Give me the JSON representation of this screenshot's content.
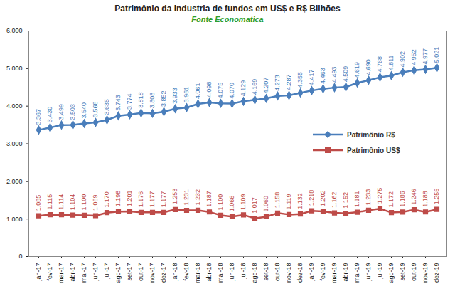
{
  "chart_data": {
    "type": "line",
    "title": "Patrimônio da Industria de fundos em US$ e R$ Bilhões",
    "subtitle": "Fonte Economatica",
    "categories": [
      "jan-17",
      "fev-17",
      "mar-17",
      "abr-17",
      "mai-17",
      "jun-17",
      "jul-17",
      "ago-17",
      "set-17",
      "out-17",
      "nov-17",
      "dez-17",
      "jan-18",
      "fev-18",
      "mar-18",
      "abr-18",
      "mai-18",
      "jun-18",
      "jul-18",
      "ago-18",
      "set-18",
      "out-18",
      "nov-18",
      "dez-18",
      "jan-19",
      "fev-19",
      "mar-19",
      "abr-19",
      "mai-19",
      "jun-19",
      "jul-19",
      "ago-19",
      "set-19",
      "out-19",
      "nov-19",
      "dez-19"
    ],
    "series": [
      {
        "name": "Patrimônio R$",
        "color": "#4a7ebb",
        "marker": "diamond",
        "values": [
          3367,
          3430,
          3499,
          3503,
          3540,
          3568,
          3635,
          3743,
          3774,
          3818,
          3808,
          3852,
          3933,
          3961,
          4061,
          4098,
          4075,
          4070,
          4129,
          4169,
          4207,
          4273,
          4287,
          4355,
          4417,
          4463,
          4493,
          4509,
          4619,
          4690,
          4768,
          4811,
          4902,
          4952,
          4977,
          5021
        ],
        "value_labels": [
          "3.367",
          "3.430",
          "3.499",
          "3.503",
          "3.540",
          "3.568",
          "3.635",
          "3.743",
          "3.774",
          "3.818",
          "3.808",
          "3.852",
          "3.933",
          "3.961",
          "4.061",
          "4.098",
          "4.075",
          "4.070",
          "4.129",
          "4.169",
          "4.207",
          "4.273",
          "4.287",
          "4.355",
          "4.417",
          "4.463",
          "4.493",
          "4.509",
          "4.619",
          "4.690",
          "4.768",
          "4.811",
          "4.902",
          "4.952",
          "4.977",
          "5.021"
        ]
      },
      {
        "name": "Patrimônio US$",
        "color": "#be4b48",
        "marker": "square",
        "values": [
          1085,
          1115,
          1114,
          1104,
          1100,
          1089,
          1170,
          1198,
          1201,
          1176,
          1177,
          1177,
          1253,
          1231,
          1232,
          1187,
          1100,
          1066,
          1109,
          1017,
          1060,
          1158,
          1119,
          1132,
          1218,
          1202,
          1162,
          1152,
          1181,
          1233,
          1275,
          1172,
          1186,
          1246,
          1188,
          1255
        ],
        "value_labels": [
          "1.085",
          "1.115",
          "1.114",
          "1.104",
          "1.100",
          "1.089",
          "1.170",
          "1.198",
          "1.201",
          "1.176",
          "1.177",
          "1.177",
          "1.253",
          "1.231",
          "1.232",
          "1.187",
          "1.100",
          "1.066",
          "1.109",
          "1.017",
          "1.060",
          "1.158",
          "1.119",
          "1.132",
          "1.218",
          "1.202",
          "1.162",
          "1.152",
          "1.181",
          "1.233",
          "1.275",
          "1.172",
          "1.186",
          "1.246",
          "1.188",
          "1.255"
        ]
      }
    ],
    "ylim": [
      0,
      6000
    ],
    "yticks": [
      0,
      {
        "value": 1000,
        "label": "1.000"
      },
      {
        "value": 2000,
        "label": "2.000"
      },
      {
        "value": 3000,
        "label": "3.000"
      },
      {
        "value": 4000,
        "label": "4.000"
      },
      {
        "value": 5000,
        "label": "5.000"
      },
      {
        "value": 6000,
        "label": "6.000"
      }
    ],
    "grid": false,
    "data_labels": true,
    "legend": "right"
  }
}
